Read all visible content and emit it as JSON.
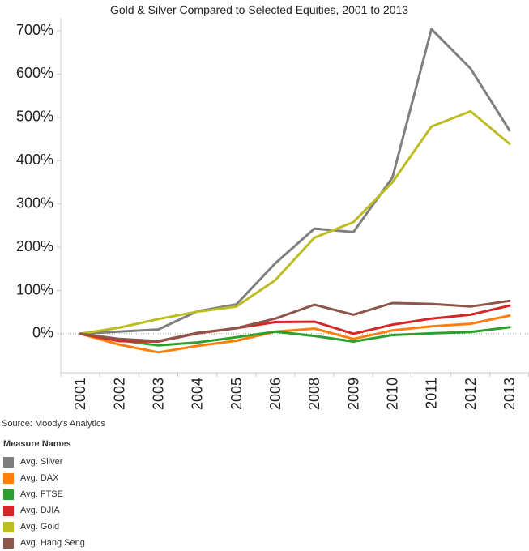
{
  "chart_data": {
    "type": "line",
    "title": "Gold & Silver Compared to Selected Equities, 2001 to 2013",
    "x": [
      "2001",
      "2002",
      "2003",
      "2004",
      "2005",
      "2006",
      "2008",
      "2009",
      "2010",
      "2011",
      "2012",
      "2013"
    ],
    "yticks": [
      "0%",
      "100%",
      "200%",
      "300%",
      "400%",
      "500%",
      "600%",
      "700%"
    ],
    "ylim": [
      -90,
      730
    ],
    "grid": false,
    "series": [
      {
        "name": "Avg. Silver",
        "color": "#7f7f7f",
        "values": [
          0,
          5,
          10,
          52,
          68,
          163,
          243,
          235,
          361,
          704,
          613,
          470
        ]
      },
      {
        "name": "Avg. DAX",
        "color": "#ff7f0e",
        "values": [
          0,
          -25,
          -43,
          -28,
          -16,
          5,
          12,
          -12,
          8,
          17,
          23,
          42
        ]
      },
      {
        "name": "Avg. FTSE",
        "color": "#2ca02c",
        "values": [
          0,
          -15,
          -27,
          -20,
          -8,
          5,
          -5,
          -18,
          -3,
          1,
          4,
          15
        ]
      },
      {
        "name": "Avg. DJIA",
        "color": "#d62728",
        "values": [
          0,
          -17,
          -18,
          1,
          13,
          27,
          28,
          0,
          21,
          35,
          44,
          65
        ]
      },
      {
        "name": "Avg. Gold",
        "color": "#bcbd22",
        "values": [
          0,
          14,
          34,
          51,
          63,
          124,
          222,
          258,
          350,
          479,
          514,
          439
        ]
      },
      {
        "name": "Avg. Hang Seng",
        "color": "#8c564b",
        "values": [
          0,
          -12,
          -17,
          2,
          13,
          35,
          67,
          44,
          71,
          69,
          63,
          76
        ]
      }
    ]
  },
  "source": "Source: Moody's Analytics",
  "legend": {
    "title": "Measure Names",
    "items": [
      {
        "label": "Avg. Silver",
        "color": "#7f7f7f"
      },
      {
        "label": "Avg. DAX",
        "color": "#ff7f0e"
      },
      {
        "label": "Avg. FTSE",
        "color": "#2ca02c"
      },
      {
        "label": "Avg. DJIA",
        "color": "#d62728"
      },
      {
        "label": "Avg. Gold",
        "color": "#bcbd22"
      },
      {
        "label": "Avg. Hang Seng",
        "color": "#8c564b"
      }
    ]
  }
}
